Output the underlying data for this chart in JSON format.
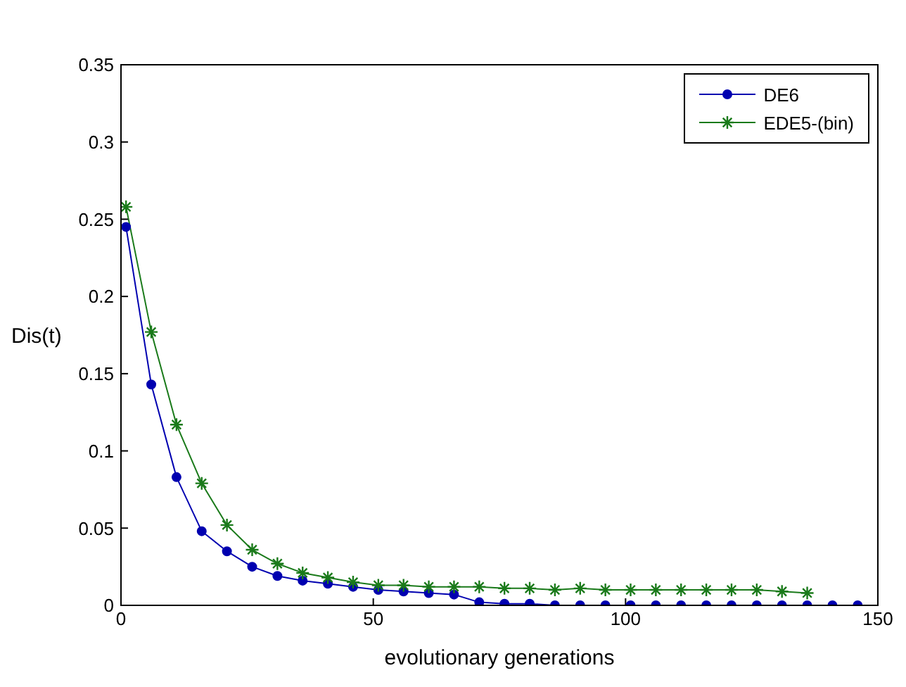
{
  "chart_data": {
    "type": "line",
    "xlabel": "evolutionary generations",
    "ylabel": "Dis(t)",
    "xlim": [
      0,
      150
    ],
    "xticks": [
      0,
      50,
      100,
      150
    ],
    "ylim": [
      0,
      0.35
    ],
    "yticks": [
      0,
      0.05,
      0.1,
      0.15,
      0.2,
      0.25,
      0.3,
      0.35
    ],
    "grid": false,
    "legend": "top right",
    "line_style": "solid",
    "series": [
      {
        "name": "DE6",
        "color": "#0000b0",
        "marker": "circle",
        "x": [
          1,
          6,
          11,
          16,
          21,
          26,
          31,
          36,
          41,
          46,
          51,
          56,
          61,
          66,
          71,
          76,
          81,
          86,
          91,
          96,
          101,
          106,
          111,
          116,
          121,
          126,
          131,
          136,
          141,
          146
        ],
        "values": [
          0.245,
          0.143,
          0.083,
          0.048,
          0.035,
          0.025,
          0.019,
          0.016,
          0.014,
          0.012,
          0.01,
          0.009,
          0.008,
          0.007,
          0.002,
          0.001,
          0.001,
          0,
          0,
          0,
          0,
          0,
          0,
          0,
          0,
          0,
          0,
          0,
          0,
          0
        ]
      },
      {
        "name": "EDE5-(bin)",
        "color": "#1a7a1a",
        "marker": "cross",
        "x": [
          1,
          6,
          11,
          16,
          21,
          26,
          31,
          36,
          41,
          46,
          51,
          56,
          61,
          66,
          71,
          76,
          81,
          86,
          91,
          96,
          101,
          106,
          111,
          116,
          121,
          126,
          131,
          136
        ],
        "values": [
          0.258,
          0.177,
          0.117,
          0.079,
          0.052,
          0.036,
          0.027,
          0.021,
          0.018,
          0.015,
          0.013,
          0.013,
          0.012,
          0.012,
          0.012,
          0.011,
          0.011,
          0.01,
          0.011,
          0.01,
          0.01,
          0.01,
          0.01,
          0.01,
          0.01,
          0.01,
          0.009,
          0.008
        ]
      }
    ]
  }
}
